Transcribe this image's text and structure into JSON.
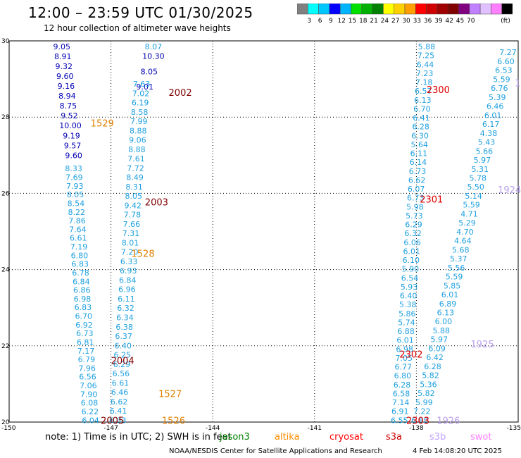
{
  "title": "12:00 – 23:59 UTC 01/30/2025",
  "subtitle": "12 hour collection of altimeter wave heights",
  "legend": {
    "colors": [
      "#808080",
      "#00ffff",
      "#00c8ff",
      "#0000ff",
      "#00b4ff",
      "#00e000",
      "#00b000",
      "#008000",
      "#ffff00",
      "#ffd000",
      "#ffa000",
      "#ff0000",
      "#d00000",
      "#a00000",
      "#800000",
      "#800080",
      "#c080ff",
      "#e0c0ff",
      "#ff80ff",
      "#000000"
    ],
    "labels": [
      "3",
      "6",
      "9",
      "12",
      "15",
      "18",
      "21",
      "24",
      "27",
      "30",
      "33",
      "36",
      "39",
      "42",
      "45",
      "70",
      "(ft)"
    ]
  },
  "note": "note:  1) Time is in UTC;  2) SWH is in feet",
  "missions": [
    {
      "name": "jason3",
      "color": "#008000"
    },
    {
      "name": "altika",
      "color": "#ff8c00"
    },
    {
      "name": "cryosat",
      "color": "#ff0000"
    },
    {
      "name": "s3a",
      "color": "#cc0000"
    },
    {
      "name": "s3b",
      "color": "#c0a0ff"
    },
    {
      "name": "swot",
      "color": "#ff80ff"
    }
  ],
  "credit": "NOAA/NESDIS Center for Satellite Applications and Research",
  "timestamp": "4 Feb 14:08:20 UTC 2025",
  "chart_data": {
    "type": "scatter",
    "title": "12:00 – 23:59 UTC 01/30/2025",
    "subtitle": "12 hour collection of altimeter wave heights",
    "xlim": [
      -150,
      -135
    ],
    "ylim": [
      20,
      30
    ],
    "x_ticks": [
      "-150",
      "-147",
      "-144",
      "-141",
      "-138",
      "-135"
    ],
    "y_ticks": [
      "20",
      "22",
      "24",
      "26",
      "28",
      "30"
    ],
    "grid": true,
    "track_labels": [
      {
        "text": "2002",
        "lon": -145.3,
        "lat": 28.65,
        "color": "#800000"
      },
      {
        "text": "1529",
        "lon": -147.6,
        "lat": 27.85,
        "color": "#e08000"
      },
      {
        "text": "2003",
        "lon": -146.0,
        "lat": 25.78,
        "color": "#800000"
      },
      {
        "text": "1528",
        "lon": -146.4,
        "lat": 24.43,
        "color": "#e08000"
      },
      {
        "text": "2004",
        "lon": -147.0,
        "lat": 21.62,
        "color": "#800000"
      },
      {
        "text": "1527",
        "lon": -145.6,
        "lat": 20.75,
        "color": "#e08000"
      },
      {
        "text": "2005",
        "lon": -147.3,
        "lat": 20.05,
        "color": "#800000"
      },
      {
        "text": "1526",
        "lon": -145.5,
        "lat": 20.05,
        "color": "#e08000"
      },
      {
        "text": "2300",
        "lon": -137.7,
        "lat": 28.72,
        "color": "#dd0000"
      },
      {
        "text": "2301",
        "lon": -137.9,
        "lat": 25.85,
        "color": "#dd0000"
      },
      {
        "text": "2302",
        "lon": -138.5,
        "lat": 21.78,
        "color": "#dd0000"
      },
      {
        "text": "2303",
        "lon": -138.3,
        "lat": 20.05,
        "color": "#dd0000"
      },
      {
        "text": "1924",
        "lon": -135.6,
        "lat": 26.1,
        "color": "#b8a0f0"
      },
      {
        "text": "1925",
        "lon": -136.4,
        "lat": 22.05,
        "color": "#b8a0f0"
      },
      {
        "text": "1926",
        "lon": -137.4,
        "lat": 20.05,
        "color": "#b8a0f0"
      },
      {
        "text": "19",
        "lon": -135.1,
        "lat": 28.9,
        "color": "#b8a0f0"
      }
    ],
    "tracks": [
      {
        "id": "a",
        "color": "#0000b4",
        "lon_top": -148.45,
        "lon_bottom": -148.1,
        "lat_top": 29.85,
        "lat_bottom": 27.0,
        "values": [
          "9.05",
          "8.91",
          "9.32",
          "9.60",
          "9.16",
          "8.94",
          "8.75",
          "9.52",
          "10.00",
          "9.19",
          "9.57",
          "9.60"
        ]
      },
      {
        "id": "b",
        "color": "#1ea0e0",
        "lon_top": -148.1,
        "lon_bottom": -147.6,
        "lat_top": 26.65,
        "lat_bottom": 20.05,
        "values": [
          "8.33",
          "7.69",
          "7.93",
          "8.05",
          "8.54",
          "8.22",
          "7.86",
          "7.64",
          "6.61",
          "7.19",
          "6.80",
          "6.83",
          "6.78",
          "6.84",
          "6.86",
          "6.98",
          "6.83",
          "6.70",
          "6.92",
          "6.73",
          "6.81",
          "7.17",
          "6.79",
          "7.96",
          "6.56",
          "7.06",
          "7.90",
          "6.08",
          "6.22",
          "6.04"
        ]
      },
      {
        "id": "c",
        "color": "#1ea0e0",
        "lon_top": -145.75,
        "lon_bottom": -146.0,
        "lat_top": 29.85,
        "lat_bottom": 28.8,
        "values": [
          "8.07"
        ]
      },
      {
        "id": "d",
        "color": "#0000b4",
        "lon_top": -145.75,
        "lon_bottom": -146.0,
        "lat_top": 29.6,
        "lat_bottom": 28.8,
        "values": [
          "10.30",
          "8.05",
          "9.01"
        ]
      },
      {
        "id": "e",
        "color": "#1ea0e0",
        "lon_top": -146.1,
        "lon_bottom": -146.8,
        "lat_top": 28.87,
        "lat_bottom": 20.05,
        "values": [
          "7.63",
          "7.02",
          "6.19",
          "8.58",
          "7.99",
          "8.88",
          "9.06",
          "8.88",
          "7.61",
          "7.72",
          "8.49",
          "8.31",
          "8.05",
          "9.42",
          "7.78",
          "7.66",
          "7.31",
          "8.01",
          "7.20",
          "6.33",
          "6.93",
          "6.84",
          "6.96",
          "6.11",
          "6.32",
          "6.34",
          "6.38",
          "6.37",
          "6.40",
          "6.25",
          "6.29",
          "6.56",
          "6.61",
          "6.46",
          "6.62",
          "6.41",
          "6.33"
        ]
      },
      {
        "id": "f",
        "color": "#1ea0e0",
        "lon_top": -137.7,
        "lon_bottom": -138.5,
        "lat_top": 29.85,
        "lat_bottom": 20.05,
        "values": [
          "5.88",
          "7.25",
          "6.44",
          "7.23",
          "7.18",
          "6.57",
          "6.13",
          "6.70",
          "6.41",
          "6.28",
          "6.30",
          "5.64",
          "6.11",
          "6.14",
          "6.73",
          "6.62",
          "6.07",
          "6.73",
          "5.98",
          "5.73",
          "6.29",
          "6.32",
          "6.06",
          "6.01",
          "6.10",
          "5.90",
          "6.54",
          "5.93",
          "6.40",
          "5.38",
          "5.86",
          "5.74",
          "6.88",
          "6.01",
          "6.98",
          "7.05",
          "6.77",
          "6.80",
          "6.28",
          "6.58",
          "7.14",
          "6.91",
          "6.55"
        ]
      },
      {
        "id": "g",
        "color": "#1ea0e0",
        "lon_top": -135.3,
        "lon_bottom": -137.9,
        "lat_top": 29.7,
        "lat_bottom": 20.05,
        "values": [
          "7.27",
          "6.60",
          "6.53",
          "5.59",
          "6.76",
          "5.39",
          "6.46",
          "6.01",
          "6.17",
          "4.38",
          "5.43",
          "5.66",
          "5.97",
          "5.31",
          "5.78",
          "5.50",
          "5.14",
          "5.59",
          "4.71",
          "5.29",
          "4.70",
          "4.64",
          "5.68",
          "5.37",
          "5.56",
          "5.59",
          "5.85",
          "6.01",
          "6.89",
          "6.13",
          "6.00",
          "5.88",
          "5.97",
          "6.09",
          "6.42",
          "6.28",
          "5.82",
          "5.36",
          "5.82",
          "5.99",
          "7.22",
          "6.88"
        ]
      }
    ]
  }
}
